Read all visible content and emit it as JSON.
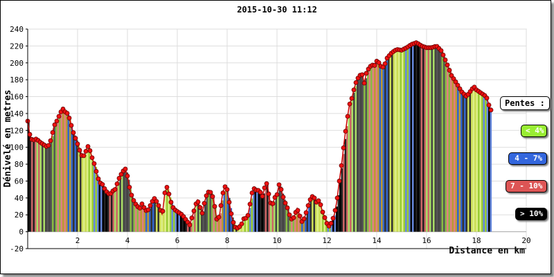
{
  "chart_data": {
    "type": "bar",
    "title": "2015-10-30 11:12",
    "xlabel": "Distance en km",
    "ylabel": "Dénivelé en metres",
    "xlim": [
      0,
      20
    ],
    "ylim": [
      -20,
      240
    ],
    "yticks": [
      -20,
      0,
      20,
      40,
      60,
      80,
      100,
      120,
      140,
      160,
      180,
      200,
      220,
      240
    ],
    "xticks": [
      2,
      4,
      6,
      8,
      10,
      12,
      14,
      16,
      18,
      20
    ],
    "grid": true,
    "legend_placement": "right",
    "profile": [
      [
        0.0,
        131
      ],
      [
        0.1,
        112
      ],
      [
        0.2,
        108
      ],
      [
        0.35,
        110
      ],
      [
        0.5,
        106
      ],
      [
        0.65,
        103
      ],
      [
        0.8,
        100
      ],
      [
        0.95,
        110
      ],
      [
        1.05,
        125
      ],
      [
        1.15,
        130
      ],
      [
        1.3,
        140
      ],
      [
        1.4,
        146
      ],
      [
        1.5,
        142
      ],
      [
        1.6,
        140
      ],
      [
        1.7,
        132
      ],
      [
        1.8,
        120
      ],
      [
        1.9,
        112
      ],
      [
        2.0,
        104
      ],
      [
        2.1,
        95
      ],
      [
        2.2,
        88
      ],
      [
        2.3,
        92
      ],
      [
        2.4,
        102
      ],
      [
        2.5,
        96
      ],
      [
        2.6,
        86
      ],
      [
        2.7,
        78
      ],
      [
        2.8,
        65
      ],
      [
        2.9,
        58
      ],
      [
        3.0,
        56
      ],
      [
        3.1,
        50
      ],
      [
        3.2,
        46
      ],
      [
        3.3,
        44
      ],
      [
        3.4,
        48
      ],
      [
        3.5,
        50
      ],
      [
        3.6,
        58
      ],
      [
        3.7,
        66
      ],
      [
        3.8,
        70
      ],
      [
        3.9,
        76
      ],
      [
        4.0,
        66
      ],
      [
        4.1,
        50
      ],
      [
        4.2,
        40
      ],
      [
        4.3,
        34
      ],
      [
        4.4,
        30
      ],
      [
        4.5,
        28
      ],
      [
        4.6,
        34
      ],
      [
        4.7,
        26
      ],
      [
        4.8,
        24
      ],
      [
        4.9,
        30
      ],
      [
        5.0,
        36
      ],
      [
        5.1,
        40
      ],
      [
        5.2,
        34
      ],
      [
        5.3,
        28
      ],
      [
        5.4,
        20
      ],
      [
        5.5,
        46
      ],
      [
        5.6,
        54
      ],
      [
        5.7,
        40
      ],
      [
        5.8,
        30
      ],
      [
        5.9,
        26
      ],
      [
        6.0,
        24
      ],
      [
        6.1,
        22
      ],
      [
        6.2,
        20
      ],
      [
        6.3,
        16
      ],
      [
        6.4,
        12
      ],
      [
        6.5,
        8
      ],
      [
        6.6,
        18
      ],
      [
        6.7,
        28
      ],
      [
        6.8,
        38
      ],
      [
        6.9,
        30
      ],
      [
        7.0,
        22
      ],
      [
        7.1,
        36
      ],
      [
        7.2,
        46
      ],
      [
        7.3,
        48
      ],
      [
        7.4,
        44
      ],
      [
        7.5,
        30
      ],
      [
        7.6,
        12
      ],
      [
        7.7,
        20
      ],
      [
        7.8,
        42
      ],
      [
        7.9,
        54
      ],
      [
        8.0,
        50
      ],
      [
        8.1,
        32
      ],
      [
        8.2,
        16
      ],
      [
        8.3,
        6
      ],
      [
        8.4,
        4
      ],
      [
        8.5,
        6
      ],
      [
        8.6,
        10
      ],
      [
        8.7,
        18
      ],
      [
        8.8,
        14
      ],
      [
        8.9,
        30
      ],
      [
        9.0,
        46
      ],
      [
        9.1,
        52
      ],
      [
        9.2,
        48
      ],
      [
        9.3,
        50
      ],
      [
        9.4,
        40
      ],
      [
        9.5,
        52
      ],
      [
        9.6,
        58
      ],
      [
        9.7,
        38
      ],
      [
        9.8,
        30
      ],
      [
        9.9,
        40
      ],
      [
        10.0,
        44
      ],
      [
        10.1,
        58
      ],
      [
        10.2,
        46
      ],
      [
        10.3,
        36
      ],
      [
        10.4,
        30
      ],
      [
        10.5,
        20
      ],
      [
        10.6,
        14
      ],
      [
        10.7,
        18
      ],
      [
        10.8,
        28
      ],
      [
        10.9,
        20
      ],
      [
        11.0,
        12
      ],
      [
        11.1,
        16
      ],
      [
        11.2,
        26
      ],
      [
        11.3,
        36
      ],
      [
        11.4,
        42
      ],
      [
        11.5,
        40
      ],
      [
        11.6,
        34
      ],
      [
        11.7,
        38
      ],
      [
        11.8,
        26
      ],
      [
        11.9,
        18
      ],
      [
        12.0,
        10
      ],
      [
        12.1,
        6
      ],
      [
        12.2,
        12
      ],
      [
        12.3,
        20
      ],
      [
        12.4,
        36
      ],
      [
        12.5,
        60
      ],
      [
        12.6,
        82
      ],
      [
        12.7,
        108
      ],
      [
        12.8,
        130
      ],
      [
        12.9,
        150
      ],
      [
        13.0,
        158
      ],
      [
        13.1,
        170
      ],
      [
        13.2,
        180
      ],
      [
        13.3,
        184
      ],
      [
        13.4,
        188
      ],
      [
        13.5,
        176
      ],
      [
        13.6,
        190
      ],
      [
        13.7,
        194
      ],
      [
        13.8,
        198
      ],
      [
        13.9,
        196
      ],
      [
        14.0,
        202
      ],
      [
        14.1,
        200
      ],
      [
        14.2,
        194
      ],
      [
        14.3,
        196
      ],
      [
        14.4,
        205
      ],
      [
        14.6,
        212
      ],
      [
        14.8,
        216
      ],
      [
        15.0,
        215
      ],
      [
        15.2,
        218
      ],
      [
        15.4,
        222
      ],
      [
        15.6,
        224
      ],
      [
        15.8,
        220
      ],
      [
        16.0,
        218
      ],
      [
        16.2,
        218
      ],
      [
        16.4,
        220
      ],
      [
        16.6,
        214
      ],
      [
        16.8,
        200
      ],
      [
        17.0,
        185
      ],
      [
        17.2,
        176
      ],
      [
        17.4,
        166
      ],
      [
        17.6,
        160
      ],
      [
        17.8,
        168
      ],
      [
        17.9,
        172
      ],
      [
        18.0,
        168
      ],
      [
        18.2,
        164
      ],
      [
        18.4,
        160
      ],
      [
        18.5,
        150
      ],
      [
        18.6,
        143
      ]
    ],
    "legend": {
      "title": "Pentes :",
      "items": [
        {
          "label": "< 4%",
          "color": "#99ee33"
        },
        {
          "label": "4 - 7%",
          "color": "#3366dd"
        },
        {
          "label": "7 - 10%",
          "color": "#dd5555"
        },
        {
          "label": "> 10%",
          "color": "#000000"
        }
      ]
    },
    "stripe_colors": [
      "#000000",
      "#99cc33",
      "#ccdd55",
      "#3366cc",
      "#e08080",
      "#555555",
      "#aadd66",
      "#222222",
      "#6688dd",
      "#ddee88",
      "#333333",
      "#bb9933",
      "#88bb44",
      "#444444",
      "#cc6666"
    ]
  }
}
